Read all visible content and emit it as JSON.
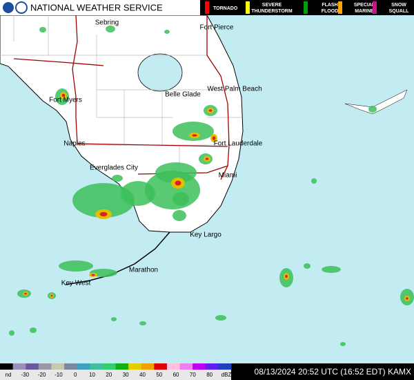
{
  "header": {
    "title": "NATIONAL WEATHER SERVICE"
  },
  "warnings": [
    {
      "label": [
        "TORNADO"
      ],
      "color": "#ff0000"
    },
    {
      "label": [
        "SEVERE",
        "THUNDERSTORM"
      ],
      "color": "#ffff00"
    },
    {
      "label": [
        "FLASH",
        "FLOOD"
      ],
      "color": "#00a000"
    },
    {
      "label": [
        "SPECIAL",
        "MARINE"
      ],
      "color": "#ffa500"
    },
    {
      "label": [
        "SNOW",
        "SQUALL"
      ],
      "color": "#c71585"
    }
  ],
  "cities": [
    "Sebring",
    "Fort Pierce",
    "Belle Glade",
    "West Palm Beach",
    "Fort Myers",
    "Naples",
    "Fort Lauderdale",
    "Everglades City",
    "Miami",
    "Key Largo",
    "Marathon",
    "Key West"
  ],
  "scale": {
    "labels": [
      "nd",
      "-30",
      "-20",
      "-10",
      "0",
      "10",
      "20",
      "30",
      "40",
      "50",
      "60",
      "70",
      "80",
      "dBZ"
    ]
  },
  "timestamp": "08/13/2024 20:52 UTC (16:52 EDT) KAMX"
}
